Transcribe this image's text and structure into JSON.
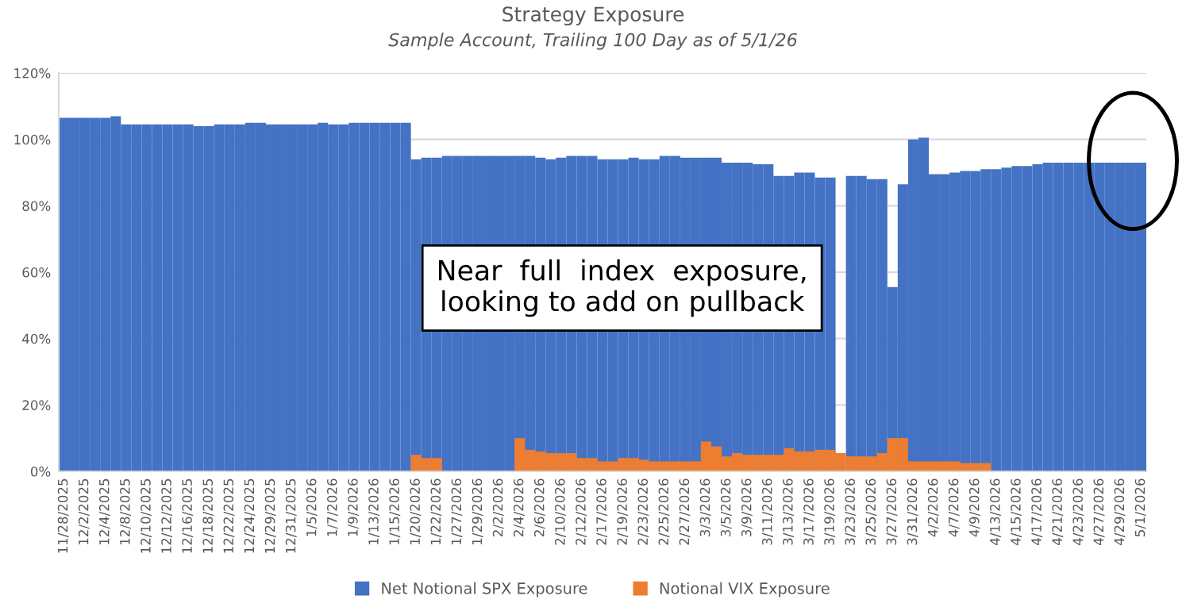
{
  "chart_data": {
    "type": "bar",
    "title": "Strategy Exposure",
    "subtitle": "Sample Account, Trailing 100 Day as of 5/1/26",
    "categories": [
      "11/28/2025",
      null,
      "12/2/2025",
      null,
      "12/4/2025",
      null,
      "12/8/2025",
      null,
      "12/10/2025",
      null,
      "12/12/2025",
      null,
      "12/16/2025",
      null,
      "12/18/2025",
      null,
      "12/22/2025",
      null,
      "12/24/2025",
      null,
      "12/29/2025",
      null,
      "12/31/2025",
      null,
      "1/5/2026",
      null,
      "1/7/2026",
      null,
      "1/9/2026",
      null,
      "1/13/2026",
      null,
      "1/15/2026",
      null,
      "1/20/2026",
      null,
      "1/22/2026",
      null,
      "1/27/2026",
      null,
      "1/29/2026",
      null,
      "2/2/2026",
      null,
      "2/4/2026",
      null,
      "2/6/2026",
      null,
      "2/10/2026",
      null,
      "2/12/2026",
      null,
      "2/17/2026",
      null,
      "2/19/2026",
      null,
      "2/23/2026",
      null,
      "2/25/2026",
      null,
      "2/27/2026",
      null,
      "3/3/2026",
      null,
      "3/5/2026",
      null,
      "3/9/2026",
      null,
      "3/11/2026",
      null,
      "3/13/2026",
      null,
      "3/17/2026",
      null,
      "3/19/2026",
      null,
      "3/23/2026",
      null,
      "3/25/2026",
      null,
      "3/27/2026",
      null,
      "3/31/2026",
      null,
      "4/2/2026",
      null,
      "4/7/2026",
      null,
      "4/9/2026",
      null,
      "4/13/2026",
      null,
      "4/15/2026",
      null,
      "4/17/2026",
      null,
      "4/21/2026",
      null,
      "4/23/2026",
      null,
      "4/27/2026",
      null,
      "4/29/2026",
      null,
      "5/1/2026"
    ],
    "series": [
      {
        "name": "Net Notional SPX Exposure",
        "color": "#4472c4",
        "values": [
          106.5,
          106.5,
          106.5,
          106.5,
          106.5,
          107,
          104.5,
          104.5,
          104.5,
          104.5,
          104.5,
          104.5,
          104.5,
          104,
          104,
          104.5,
          104.5,
          104.5,
          105,
          105,
          104.5,
          104.5,
          104.5,
          104.5,
          104.5,
          105,
          104.5,
          104.5,
          105,
          105,
          105,
          105,
          105,
          105,
          94,
          94.5,
          94.5,
          95,
          95,
          95,
          95,
          95,
          95,
          95,
          95,
          95,
          94.5,
          94,
          94.5,
          95,
          95,
          95,
          94,
          94,
          94,
          94.5,
          94,
          94,
          95,
          95,
          94.5,
          94.5,
          94.5,
          94.5,
          93,
          93,
          93,
          92.5,
          92.5,
          89,
          89,
          90,
          90,
          88.5,
          88.5,
          null,
          89,
          89,
          88,
          88,
          55.5,
          86.5,
          100,
          100.5,
          89.5,
          89.5,
          90,
          90.5,
          90.5,
          91,
          91,
          91.5,
          92,
          92,
          92.5,
          93,
          93,
          93,
          93,
          93,
          93,
          93,
          93,
          93,
          93
        ]
      },
      {
        "name": "Notional VIX Exposure",
        "color": "#ed7d31",
        "values": [
          null,
          null,
          null,
          null,
          null,
          null,
          null,
          null,
          null,
          null,
          null,
          null,
          null,
          null,
          null,
          null,
          null,
          null,
          null,
          null,
          null,
          null,
          null,
          null,
          null,
          null,
          null,
          null,
          null,
          null,
          null,
          null,
          null,
          null,
          5,
          4,
          4,
          null,
          null,
          null,
          null,
          null,
          null,
          null,
          10,
          6.5,
          6,
          5.5,
          5.5,
          5.5,
          4,
          4,
          3,
          3,
          4,
          4,
          3.5,
          3,
          3,
          3,
          3,
          3,
          9,
          7.5,
          4.5,
          5.5,
          5,
          5,
          5,
          5,
          7,
          6,
          6,
          6.5,
          6.5,
          5.5,
          4.5,
          4.5,
          4.5,
          5.5,
          10,
          10,
          3,
          3,
          3,
          3,
          3,
          2.5,
          2.5,
          2.5,
          null,
          null,
          null,
          null,
          null,
          null,
          null,
          null,
          null,
          null,
          null,
          null,
          null,
          null,
          null
        ]
      }
    ],
    "ylim": [
      0,
      120
    ],
    "yticks": [
      {
        "value": 0,
        "label": "0%"
      },
      {
        "value": 20,
        "label": "20%"
      },
      {
        "value": 40,
        "label": "40%"
      },
      {
        "value": 60,
        "label": "60%"
      },
      {
        "value": 80,
        "label": "80%"
      },
      {
        "value": 100,
        "label": "100%"
      },
      {
        "value": 120,
        "label": "120%"
      }
    ],
    "grid": "y",
    "legend": "bottom",
    "annotations": [
      "Near  full  index  exposure,\nlooking to add on pullback"
    ]
  }
}
